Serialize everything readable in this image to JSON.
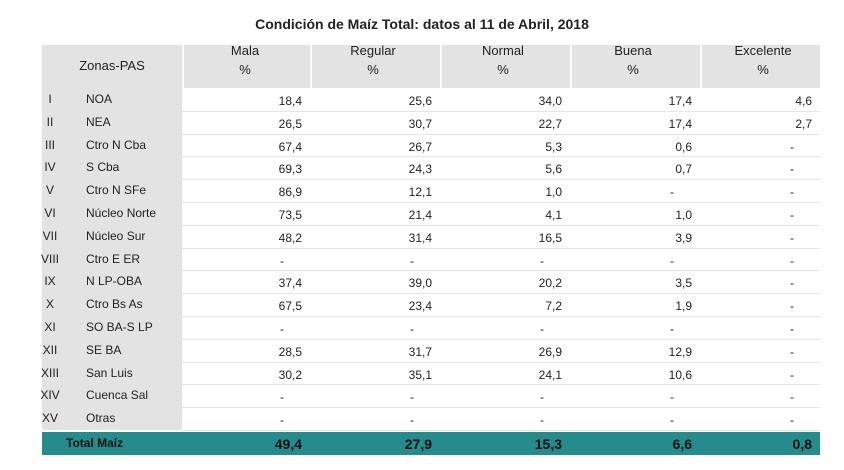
{
  "title": "Condición de Maíz Total: datos al 11 de Abril, 2018",
  "table": {
    "zone_header": "Zonas-PAS",
    "columns": [
      {
        "name": "Mala",
        "unit": "%"
      },
      {
        "name": "Regular",
        "unit": "%"
      },
      {
        "name": "Normal",
        "unit": "%"
      },
      {
        "name": "Buena",
        "unit": "%"
      },
      {
        "name": "Excelente",
        "unit": "%"
      }
    ],
    "rows": [
      [
        "I",
        "NOA",
        "18,4",
        "25,6",
        "34,0",
        "17,4",
        "4,6"
      ],
      [
        "II",
        "NEA",
        "26,5",
        "30,7",
        "22,7",
        "17,4",
        "2,7"
      ],
      [
        "III",
        "Ctro N Cba",
        "67,4",
        "26,7",
        "5,3",
        "0,6",
        "-"
      ],
      [
        "IV",
        "S Cba",
        "69,3",
        "24,3",
        "5,6",
        "0,7",
        "-"
      ],
      [
        "V",
        "Ctro N SFe",
        "86,9",
        "12,1",
        "1,0",
        "-",
        "-"
      ],
      [
        "VI",
        "Núcleo Norte",
        "73,5",
        "21,4",
        "4,1",
        "1,0",
        "-"
      ],
      [
        "VII",
        "Núcleo Sur",
        "48,2",
        "31,4",
        "16,5",
        "3,9",
        "-"
      ],
      [
        "VIII",
        "Ctro E ER",
        "-",
        "-",
        "-",
        "-",
        "-"
      ],
      [
        "IX",
        "N LP-OBA",
        "37,4",
        "39,0",
        "20,2",
        "3,5",
        "-"
      ],
      [
        "X",
        "Ctro Bs As",
        "67,5",
        "23,4",
        "7,2",
        "1,9",
        "-"
      ],
      [
        "XI",
        "SO BA-S LP",
        "-",
        "-",
        "-",
        "-",
        "-"
      ],
      [
        "XII",
        "SE BA",
        "28,5",
        "31,7",
        "26,9",
        "12,9",
        "-"
      ],
      [
        "XIII",
        "San Luis",
        "30,2",
        "35,1",
        "24,1",
        "10,6",
        "-"
      ],
      [
        "XIV",
        "Cuenca Sal",
        "-",
        "-",
        "-",
        "-",
        "-"
      ],
      [
        "XV",
        "Otras",
        "-",
        "-",
        "-",
        "-",
        "-"
      ]
    ],
    "total": {
      "label": "Total Maíz",
      "values": [
        "49,4",
        "27,9",
        "15,3",
        "6,6",
        "0,8"
      ]
    }
  }
}
